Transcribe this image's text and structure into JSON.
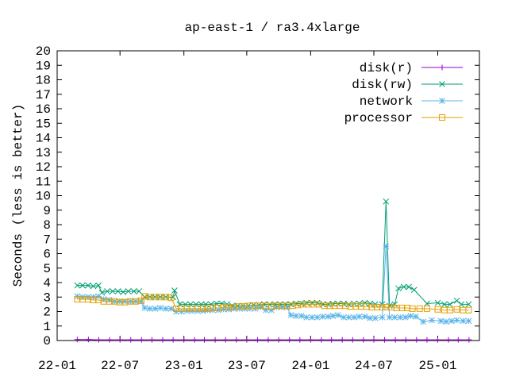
{
  "chart_data": {
    "type": "line",
    "title": "ap-east-1 / ra3.4xlarge",
    "xlabel": "",
    "ylabel": "Seconds (less is better)",
    "ylim": [
      0,
      20
    ],
    "yticks": [
      "0",
      "1",
      "2",
      "3",
      "4",
      "5",
      "6",
      "7",
      "8",
      "9",
      "10",
      "11",
      "12",
      "13",
      "14",
      "15",
      "16",
      "17",
      "18",
      "19",
      "20"
    ],
    "xlim": [
      "2022-01-01",
      "2025-05-01"
    ],
    "xticks": [
      {
        "date": "2022-01-01",
        "label": "22-01"
      },
      {
        "date": "2022-07-01",
        "label": "22-07"
      },
      {
        "date": "2023-01-01",
        "label": "23-01"
      },
      {
        "date": "2023-07-01",
        "label": "23-07"
      },
      {
        "date": "2024-01-01",
        "label": "24-01"
      },
      {
        "date": "2024-07-01",
        "label": "24-07"
      },
      {
        "date": "2025-01-01",
        "label": "25-01"
      }
    ],
    "grid": false,
    "legend_position": "top-right",
    "series": [
      {
        "name": "disk(r)",
        "color": "#9400d3",
        "marker": "plus",
        "points": [
          [
            "2022-02-28",
            0.07
          ],
          [
            "2022-04-01",
            0.07
          ],
          [
            "2022-05-01",
            0.05
          ],
          [
            "2022-06-01",
            0.05
          ],
          [
            "2022-07-01",
            0.05
          ],
          [
            "2022-08-01",
            0.05
          ],
          [
            "2022-09-01",
            0.05
          ],
          [
            "2022-10-01",
            0.05
          ],
          [
            "2022-11-01",
            0.05
          ],
          [
            "2022-12-01",
            0.05
          ],
          [
            "2023-01-01",
            0.05
          ],
          [
            "2023-02-01",
            0.05
          ],
          [
            "2023-03-01",
            0.05
          ],
          [
            "2023-04-01",
            0.05
          ],
          [
            "2023-05-01",
            0.05
          ],
          [
            "2023-06-01",
            0.05
          ],
          [
            "2023-07-01",
            0.05
          ],
          [
            "2023-08-01",
            0.05
          ],
          [
            "2023-09-01",
            0.05
          ],
          [
            "2023-10-01",
            0.05
          ],
          [
            "2023-11-01",
            0.05
          ],
          [
            "2023-12-01",
            0.05
          ],
          [
            "2024-01-01",
            0.05
          ],
          [
            "2024-02-01",
            0.05
          ],
          [
            "2024-03-01",
            0.05
          ],
          [
            "2024-04-01",
            0.05
          ],
          [
            "2024-05-01",
            0.05
          ],
          [
            "2024-06-01",
            0.05
          ],
          [
            "2024-07-01",
            0.05
          ],
          [
            "2024-08-01",
            0.05
          ],
          [
            "2024-09-01",
            0.05
          ],
          [
            "2024-10-01",
            0.05
          ],
          [
            "2024-11-01",
            0.05
          ],
          [
            "2024-12-01",
            0.05
          ],
          [
            "2025-01-01",
            0.05
          ],
          [
            "2025-02-01",
            0.05
          ],
          [
            "2025-03-01",
            0.05
          ],
          [
            "2025-04-01",
            0.05
          ]
        ]
      },
      {
        "name": "disk(rw)",
        "color": "#009e73",
        "marker": "cross",
        "points": [
          [
            "2022-02-28",
            3.8
          ],
          [
            "2022-03-15",
            3.8
          ],
          [
            "2022-03-31",
            3.8
          ],
          [
            "2022-04-15",
            3.75
          ],
          [
            "2022-04-30",
            3.8
          ],
          [
            "2022-05-10",
            3.3
          ],
          [
            "2022-05-25",
            3.4
          ],
          [
            "2022-06-10",
            3.4
          ],
          [
            "2022-06-25",
            3.4
          ],
          [
            "2022-07-10",
            3.35
          ],
          [
            "2022-07-25",
            3.4
          ],
          [
            "2022-08-10",
            3.4
          ],
          [
            "2022-08-25",
            3.4
          ],
          [
            "2022-09-10",
            3.0
          ],
          [
            "2022-09-25",
            3.0
          ],
          [
            "2022-10-10",
            3.0
          ],
          [
            "2022-10-25",
            3.0
          ],
          [
            "2022-11-10",
            3.0
          ],
          [
            "2022-12-01",
            3.0
          ],
          [
            "2022-12-05",
            3.45
          ],
          [
            "2022-12-20",
            2.5
          ],
          [
            "2023-01-05",
            2.5
          ],
          [
            "2023-01-20",
            2.5
          ],
          [
            "2023-02-05",
            2.5
          ],
          [
            "2023-02-20",
            2.5
          ],
          [
            "2023-03-05",
            2.5
          ],
          [
            "2023-03-20",
            2.5
          ],
          [
            "2023-04-05",
            2.55
          ],
          [
            "2023-04-20",
            2.55
          ],
          [
            "2023-05-05",
            2.5
          ],
          [
            "2023-05-20",
            2.4
          ],
          [
            "2023-06-05",
            2.4
          ],
          [
            "2023-06-20",
            2.4
          ],
          [
            "2023-07-05",
            2.4
          ],
          [
            "2023-07-20",
            2.45
          ],
          [
            "2023-08-05",
            2.45
          ],
          [
            "2023-08-20",
            2.5
          ],
          [
            "2023-09-05",
            2.5
          ],
          [
            "2023-09-20",
            2.5
          ],
          [
            "2023-10-05",
            2.5
          ],
          [
            "2023-10-20",
            2.5
          ],
          [
            "2023-11-05",
            2.5
          ],
          [
            "2023-11-20",
            2.55
          ],
          [
            "2023-12-05",
            2.55
          ],
          [
            "2023-12-20",
            2.6
          ],
          [
            "2024-01-05",
            2.6
          ],
          [
            "2024-01-20",
            2.6
          ],
          [
            "2024-02-05",
            2.5
          ],
          [
            "2024-02-20",
            2.5
          ],
          [
            "2024-03-05",
            2.55
          ],
          [
            "2024-03-20",
            2.55
          ],
          [
            "2024-04-05",
            2.55
          ],
          [
            "2024-04-20",
            2.5
          ],
          [
            "2024-05-05",
            2.55
          ],
          [
            "2024-05-20",
            2.55
          ],
          [
            "2024-06-05",
            2.6
          ],
          [
            "2024-06-20",
            2.55
          ],
          [
            "2024-07-05",
            2.5
          ],
          [
            "2024-07-25",
            2.5
          ],
          [
            "2024-08-05",
            9.6
          ],
          [
            "2024-08-15",
            2.4
          ],
          [
            "2024-08-30",
            2.5
          ],
          [
            "2024-09-10",
            3.6
          ],
          [
            "2024-09-25",
            3.7
          ],
          [
            "2024-10-10",
            3.7
          ],
          [
            "2024-10-25",
            3.5
          ],
          [
            "2024-12-01",
            2.55
          ],
          [
            "2025-01-01",
            2.6
          ],
          [
            "2025-01-20",
            2.5
          ],
          [
            "2025-02-05",
            2.5
          ],
          [
            "2025-02-25",
            2.75
          ],
          [
            "2025-03-10",
            2.5
          ],
          [
            "2025-03-31",
            2.5
          ]
        ]
      },
      {
        "name": "network",
        "color": "#56b4e9",
        "marker": "star",
        "points": [
          [
            "2022-02-28",
            3.05
          ],
          [
            "2022-03-15",
            3.0
          ],
          [
            "2022-03-31",
            3.0
          ],
          [
            "2022-04-15",
            3.0
          ],
          [
            "2022-04-30",
            3.05
          ],
          [
            "2022-05-15",
            2.85
          ],
          [
            "2022-05-31",
            2.8
          ],
          [
            "2022-06-15",
            2.7
          ],
          [
            "2022-06-30",
            2.7
          ],
          [
            "2022-07-15",
            2.7
          ],
          [
            "2022-07-31",
            2.7
          ],
          [
            "2022-08-15",
            2.7
          ],
          [
            "2022-08-31",
            2.7
          ],
          [
            "2022-09-10",
            2.25
          ],
          [
            "2022-09-25",
            2.2
          ],
          [
            "2022-10-10",
            2.2
          ],
          [
            "2022-10-25",
            2.25
          ],
          [
            "2022-11-10",
            2.2
          ],
          [
            "2022-11-25",
            2.2
          ],
          [
            "2022-12-10",
            2.0
          ],
          [
            "2022-12-25",
            2.0
          ],
          [
            "2023-01-10",
            2.05
          ],
          [
            "2023-01-25",
            2.05
          ],
          [
            "2023-02-10",
            2.05
          ],
          [
            "2023-02-25",
            2.05
          ],
          [
            "2023-03-10",
            2.1
          ],
          [
            "2023-03-25",
            2.1
          ],
          [
            "2023-04-10",
            2.1
          ],
          [
            "2023-04-25",
            2.15
          ],
          [
            "2023-05-10",
            2.15
          ],
          [
            "2023-05-25",
            2.2
          ],
          [
            "2023-06-10",
            2.2
          ],
          [
            "2023-06-25",
            2.2
          ],
          [
            "2023-07-10",
            2.2
          ],
          [
            "2023-07-25",
            2.2
          ],
          [
            "2023-08-10",
            2.3
          ],
          [
            "2023-08-25",
            2.1
          ],
          [
            "2023-09-10",
            2.1
          ],
          [
            "2023-09-25",
            2.3
          ],
          [
            "2023-10-10",
            2.3
          ],
          [
            "2023-10-25",
            2.3
          ],
          [
            "2023-11-05",
            1.75
          ],
          [
            "2023-11-20",
            1.7
          ],
          [
            "2023-12-05",
            1.7
          ],
          [
            "2023-12-20",
            1.6
          ],
          [
            "2024-01-05",
            1.6
          ],
          [
            "2024-01-20",
            1.6
          ],
          [
            "2024-02-05",
            1.65
          ],
          [
            "2024-02-20",
            1.65
          ],
          [
            "2024-03-05",
            1.7
          ],
          [
            "2024-03-20",
            1.75
          ],
          [
            "2024-04-05",
            1.6
          ],
          [
            "2024-04-20",
            1.6
          ],
          [
            "2024-05-05",
            1.6
          ],
          [
            "2024-05-20",
            1.65
          ],
          [
            "2024-06-05",
            1.65
          ],
          [
            "2024-06-20",
            1.55
          ],
          [
            "2024-07-05",
            1.55
          ],
          [
            "2024-07-25",
            1.6
          ],
          [
            "2024-08-05",
            6.5
          ],
          [
            "2024-08-15",
            1.6
          ],
          [
            "2024-08-30",
            1.6
          ],
          [
            "2024-09-15",
            1.6
          ],
          [
            "2024-09-30",
            1.6
          ],
          [
            "2024-10-15",
            1.7
          ],
          [
            "2024-10-30",
            1.65
          ],
          [
            "2024-11-20",
            1.3
          ],
          [
            "2024-12-15",
            1.4
          ],
          [
            "2025-01-10",
            1.35
          ],
          [
            "2025-01-25",
            1.3
          ],
          [
            "2025-02-10",
            1.35
          ],
          [
            "2025-02-25",
            1.4
          ],
          [
            "2025-03-15",
            1.35
          ],
          [
            "2025-03-31",
            1.35
          ]
        ]
      },
      {
        "name": "processor",
        "color": "#e69f00",
        "marker": "square",
        "points": [
          [
            "2022-02-28",
            2.85
          ],
          [
            "2022-03-15",
            2.85
          ],
          [
            "2022-03-31",
            2.85
          ],
          [
            "2022-04-15",
            2.8
          ],
          [
            "2022-04-30",
            2.8
          ],
          [
            "2022-05-15",
            2.7
          ],
          [
            "2022-05-31",
            2.7
          ],
          [
            "2022-06-15",
            2.7
          ],
          [
            "2022-06-30",
            2.65
          ],
          [
            "2022-07-15",
            2.65
          ],
          [
            "2022-07-31",
            2.7
          ],
          [
            "2022-08-15",
            2.7
          ],
          [
            "2022-08-31",
            2.75
          ],
          [
            "2022-09-10",
            3.05
          ],
          [
            "2022-09-25",
            3.0
          ],
          [
            "2022-10-10",
            3.0
          ],
          [
            "2022-10-25",
            3.0
          ],
          [
            "2022-11-10",
            3.0
          ],
          [
            "2022-11-25",
            2.95
          ],
          [
            "2022-12-10",
            2.2
          ],
          [
            "2022-12-25",
            2.2
          ],
          [
            "2023-01-10",
            2.2
          ],
          [
            "2023-01-25",
            2.2
          ],
          [
            "2023-02-10",
            2.2
          ],
          [
            "2023-02-25",
            2.2
          ],
          [
            "2023-03-10",
            2.2
          ],
          [
            "2023-03-25",
            2.25
          ],
          [
            "2023-04-10",
            2.25
          ],
          [
            "2023-04-25",
            2.3
          ],
          [
            "2023-05-10",
            2.3
          ],
          [
            "2023-05-25",
            2.3
          ],
          [
            "2023-06-10",
            2.35
          ],
          [
            "2023-06-25",
            2.35
          ],
          [
            "2023-07-10",
            2.4
          ],
          [
            "2023-07-25",
            2.4
          ],
          [
            "2023-08-10",
            2.4
          ],
          [
            "2023-08-25",
            2.4
          ],
          [
            "2023-09-10",
            2.35
          ],
          [
            "2023-09-25",
            2.4
          ],
          [
            "2023-10-10",
            2.4
          ],
          [
            "2023-10-25",
            2.4
          ],
          [
            "2023-11-10",
            2.4
          ],
          [
            "2023-11-25",
            2.45
          ],
          [
            "2023-12-10",
            2.5
          ],
          [
            "2023-12-25",
            2.5
          ],
          [
            "2024-01-10",
            2.5
          ],
          [
            "2024-01-25",
            2.5
          ],
          [
            "2024-02-10",
            2.4
          ],
          [
            "2024-02-25",
            2.4
          ],
          [
            "2024-03-10",
            2.4
          ],
          [
            "2024-03-25",
            2.4
          ],
          [
            "2024-04-10",
            2.4
          ],
          [
            "2024-04-25",
            2.35
          ],
          [
            "2024-05-10",
            2.35
          ],
          [
            "2024-05-25",
            2.35
          ],
          [
            "2024-06-10",
            2.35
          ],
          [
            "2024-06-25",
            2.3
          ],
          [
            "2024-07-10",
            2.3
          ],
          [
            "2024-07-25",
            2.3
          ],
          [
            "2024-08-05",
            2.3
          ],
          [
            "2024-08-20",
            2.3
          ],
          [
            "2024-09-05",
            2.25
          ],
          [
            "2024-09-20",
            2.25
          ],
          [
            "2024-10-05",
            2.25
          ],
          [
            "2024-10-20",
            2.2
          ],
          [
            "2024-11-10",
            2.2
          ],
          [
            "2024-12-01",
            2.2
          ],
          [
            "2025-01-01",
            2.15
          ],
          [
            "2025-01-20",
            2.1
          ],
          [
            "2025-02-05",
            2.1
          ],
          [
            "2025-02-25",
            2.15
          ],
          [
            "2025-03-15",
            2.1
          ],
          [
            "2025-03-31",
            2.1
          ]
        ]
      }
    ]
  }
}
